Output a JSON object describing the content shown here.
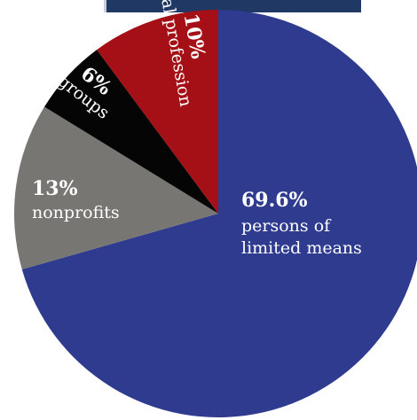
{
  "chart_data": {
    "type": "pie",
    "title": "",
    "slices": [
      {
        "percent": "69.6%",
        "value": 69.6,
        "label_lines": [
          "persons of",
          "limited means"
        ],
        "color": "#2e3b8f"
      },
      {
        "percent": "13%",
        "value": 13,
        "label_lines": [
          "nonprofits"
        ],
        "color": "#777672"
      },
      {
        "percent": "6%",
        "value": 6,
        "label_lines": [
          "groups"
        ],
        "color": "#050505"
      },
      {
        "percent": "10%",
        "value": 10,
        "label_lines": [
          "legal profession"
        ],
        "color": "#a50f16"
      }
    ]
  }
}
